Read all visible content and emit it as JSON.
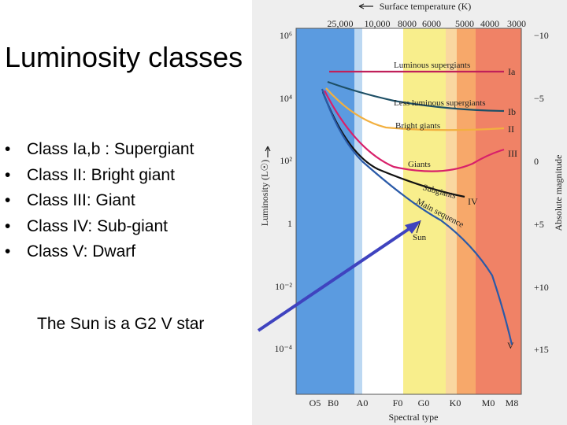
{
  "slide": {
    "title": "Luminosity classes",
    "bullets": [
      "Class Ia,b : Supergiant",
      "Class II: Bright giant",
      "Class III: Giant",
      "Class IV: Sub-giant",
      "Class V: Dwarf"
    ],
    "bullet_symbol": "•",
    "caption": "The Sun is a G2 V star"
  },
  "diagram": {
    "top_axis_title": "Surface temperature (K)",
    "top_ticks": [
      "25,000",
      "10,000",
      "8000",
      "6000",
      "5000",
      "4000",
      "3000"
    ],
    "left_axis_title": "Luminosity (L☉)",
    "left_ticks": [
      "10⁶",
      "10⁴",
      "10²",
      "1",
      "10⁻²",
      "10⁻⁴"
    ],
    "right_axis_title": "Absolute magnitude",
    "right_ticks": [
      "−10",
      "−5",
      "0",
      "+5",
      "+10",
      "+15"
    ],
    "bottom_axis_title": "Spectral type",
    "bottom_ticks": [
      "O5",
      "B0",
      "A0",
      "F0",
      "G0",
      "K0",
      "M0",
      "M8"
    ],
    "curve_labels": {
      "luminous_supergiants": "Luminous supergiants",
      "less_luminous_supergiants": "Less luminous supergiants",
      "bright_giants": "Bright giants",
      "giants": "Giants",
      "subgiants": "Subgiants",
      "main_sequence": "Main sequence",
      "sun": "Sun"
    },
    "class_labels": [
      "Ia",
      "Ib",
      "II",
      "III",
      "IV",
      "V"
    ],
    "colors": {
      "band_blue": "#5b9be0",
      "band_lightblue": "#bcd8f2",
      "band_white": "#ffffff",
      "band_yellow": "#f8ee8c",
      "band_lightorange": "#fad7a0",
      "band_orange": "#f7a86a",
      "band_red": "#f08266",
      "curve_ia": "#c0205a",
      "curve_ib": "#1d4f66",
      "curve_ii": "#f2b040",
      "curve_iii": "#d8206a",
      "curve_iv": "#111111",
      "curve_v": "#2a5aa8",
      "arrow": "#3f43bf"
    }
  }
}
